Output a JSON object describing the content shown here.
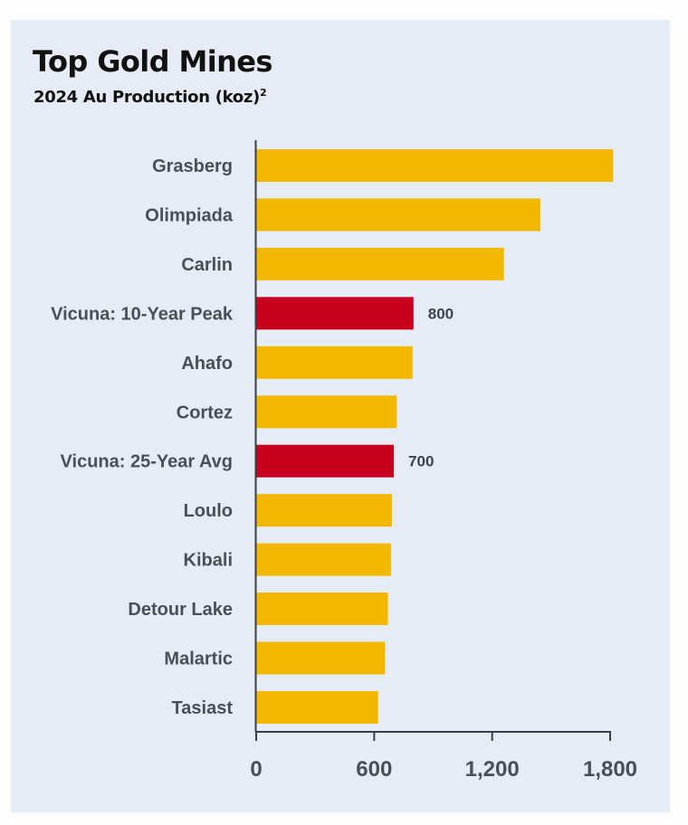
{
  "chart_data": {
    "type": "bar",
    "orientation": "horizontal",
    "title": "Top Gold Mines",
    "subtitle": "2024 Au Production (koz)",
    "subtitle_footnote": "2",
    "xlabel": "",
    "ylabel": "",
    "xlim": [
      0,
      1800
    ],
    "xticks": [
      0,
      600,
      1200,
      1800
    ],
    "xtick_labels": [
      "0",
      "600",
      "1,200",
      "1,800"
    ],
    "grid": false,
    "legend": null,
    "categories": [
      "Grasberg",
      "Olimpiada",
      "Carlin",
      "Vicuna: 10-Year Peak",
      "Ahafo",
      "Cortez",
      "Vicuna: 25-Year Avg",
      "Loulo",
      "Kibali",
      "Detour Lake",
      "Malartic",
      "Tasiast"
    ],
    "values": [
      1815,
      1445,
      1260,
      800,
      795,
      715,
      700,
      690,
      685,
      670,
      655,
      620
    ],
    "highlight": [
      false,
      false,
      false,
      true,
      false,
      false,
      true,
      false,
      false,
      false,
      false,
      false
    ],
    "data_labels": [
      "",
      "",
      "",
      "800",
      "",
      "",
      "700",
      "",
      "",
      "",
      "",
      ""
    ],
    "colors": {
      "default": "#F2B800",
      "highlight": "#C8001E",
      "axis": "#3a3f47",
      "text": "#4a4f57",
      "background": "#E6ECF5"
    }
  }
}
